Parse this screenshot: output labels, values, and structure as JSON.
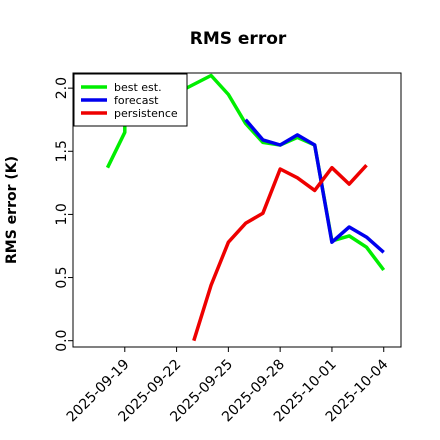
{
  "chart_data": {
    "type": "line",
    "title": "RMS error",
    "xlabel": "",
    "ylabel": "RMS error (K)",
    "x_ticks": [
      "2025-09-19",
      "2025-09-22",
      "2025-09-25",
      "2025-09-28",
      "2025-10-01",
      "2025-10-04"
    ],
    "highlight_tick": "2025-09-25",
    "highlight_color": "#008000",
    "y_ticks": [
      "0.0",
      "0.5",
      "1.0",
      "1.5",
      "2.0"
    ],
    "xlim": [
      "2025-09-16",
      "2025-10-05"
    ],
    "ylim": [
      -0.05,
      2.12
    ],
    "grid": false,
    "legend_position": "top-left",
    "series": [
      {
        "name": "best est.",
        "color": "#00ee00",
        "points": [
          [
            "2025-09-18",
            1.37
          ],
          [
            "2025-09-19",
            1.65
          ],
          [
            "2025-09-19",
            1.75
          ],
          [
            "2025-09-24",
            2.1
          ],
          [
            "2025-09-25",
            1.95
          ],
          [
            "2025-09-26",
            1.72
          ],
          [
            "2025-09-27",
            1.57
          ],
          [
            "2025-09-28",
            1.55
          ],
          [
            "2025-09-29",
            1.61
          ],
          [
            "2025-09-30",
            1.55
          ],
          [
            "2025-10-01",
            0.79
          ],
          [
            "2025-10-02",
            0.83
          ],
          [
            "2025-10-03",
            0.74
          ],
          [
            "2025-10-04",
            0.56
          ]
        ]
      },
      {
        "name": "forecast",
        "color": "#0000ee",
        "points": [
          [
            "2025-09-26",
            1.75
          ],
          [
            "2025-09-27",
            1.59
          ],
          [
            "2025-09-28",
            1.55
          ],
          [
            "2025-09-29",
            1.63
          ],
          [
            "2025-09-30",
            1.55
          ],
          [
            "2025-10-01",
            0.78
          ],
          [
            "2025-10-02",
            0.9
          ],
          [
            "2025-10-03",
            0.82
          ],
          [
            "2025-10-04",
            0.7
          ]
        ]
      },
      {
        "name": "persistence",
        "color": "#ee0000",
        "points": [
          [
            "2025-09-23",
            0.0
          ],
          [
            "2025-09-24",
            0.44
          ],
          [
            "2025-09-25",
            0.78
          ],
          [
            "2025-09-26",
            0.93
          ],
          [
            "2025-09-27",
            1.01
          ],
          [
            "2025-09-28",
            1.36
          ],
          [
            "2025-09-29",
            1.29
          ],
          [
            "2025-09-30",
            1.19
          ],
          [
            "2025-10-01",
            1.37
          ],
          [
            "2025-10-02",
            1.24
          ],
          [
            "2025-10-03",
            1.39
          ]
        ]
      }
    ]
  }
}
